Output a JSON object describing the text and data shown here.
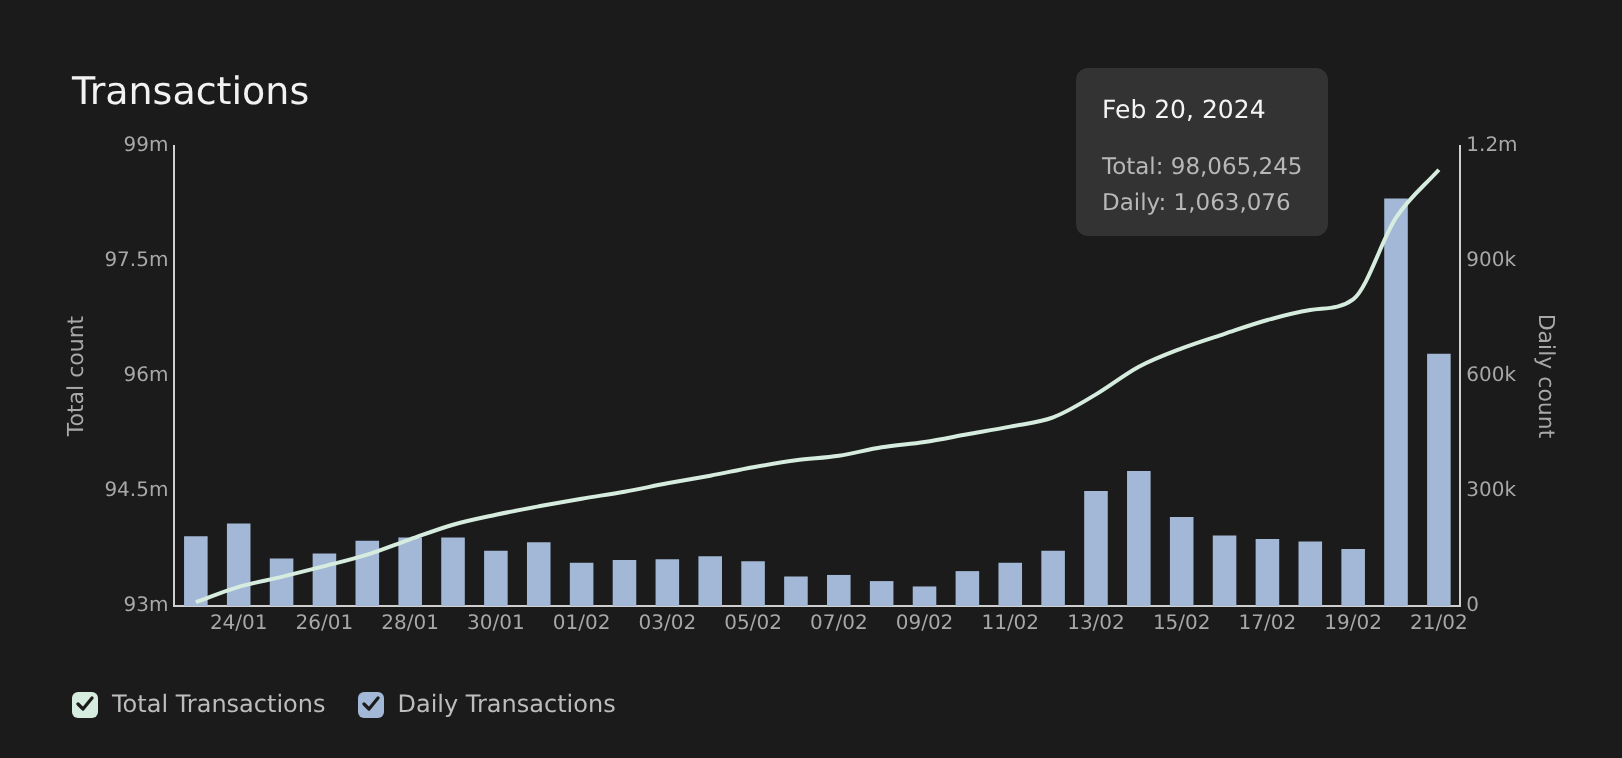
{
  "chart_data": {
    "type": "bar",
    "title": "Transactions",
    "ylabel": "Total count",
    "y2label": "Daily count",
    "categories": [
      null,
      "24/01",
      null,
      "26/01",
      null,
      "28/01",
      null,
      "30/01",
      null,
      "01/02",
      null,
      "03/02",
      null,
      "05/02",
      null,
      "07/02",
      null,
      "09/02",
      null,
      "11/02",
      null,
      "13/02",
      null,
      "15/02",
      null,
      "17/02",
      null,
      "19/02",
      null,
      "21/02"
    ],
    "series": [
      {
        "name": "Total Transactions",
        "type": "line",
        "color": "#d6ecdf",
        "values": [
          93050000,
          93250000,
          93380000,
          93520000,
          93670000,
          93870000,
          94060000,
          94190000,
          94300000,
          94400000,
          94490000,
          94600000,
          94700000,
          94810000,
          94900000,
          94960000,
          95070000,
          95140000,
          95240000,
          95340000,
          95460000,
          95760000,
          96120000,
          96360000,
          96550000,
          96730000,
          96860000,
          97000000,
          98065245,
          98690000
        ]
      },
      {
        "name": "Daily Transactions",
        "axis": "y2",
        "color": "#a3b8d6",
        "values": [
          182000,
          215000,
          124000,
          137000,
          170000,
          179000,
          179000,
          144000,
          166000,
          113000,
          120000,
          122000,
          130000,
          117000,
          77000,
          81000,
          65000,
          51000,
          91000,
          113000,
          144000,
          300000,
          352000,
          232000,
          184000,
          175000,
          168000,
          149000,
          1063076,
          658000
        ]
      }
    ],
    "ylim": [
      93000000,
      99000000
    ],
    "yticks": [
      {
        "value": 93000000,
        "label": "93m"
      },
      {
        "value": 94500000,
        "label": "94.5m"
      },
      {
        "value": 96000000,
        "label": "96m"
      },
      {
        "value": 97500000,
        "label": "97.5m"
      },
      {
        "value": 99000000,
        "label": "99m"
      }
    ],
    "y2lim": [
      0,
      1200000
    ],
    "y2ticks": [
      0,
      {
        "value": 300000,
        "label": "300k"
      },
      {
        "value": 600000,
        "label": "600k"
      },
      {
        "value": 900000,
        "label": "900k"
      },
      {
        "value": 1200000,
        "label": "1.2m"
      }
    ],
    "annotations": [
      "Feb 20, 2024",
      "Total: 98,065,245",
      "Daily: 1,063,076"
    ],
    "grid": false,
    "legend": "bottom left",
    "marker": "none"
  }
}
